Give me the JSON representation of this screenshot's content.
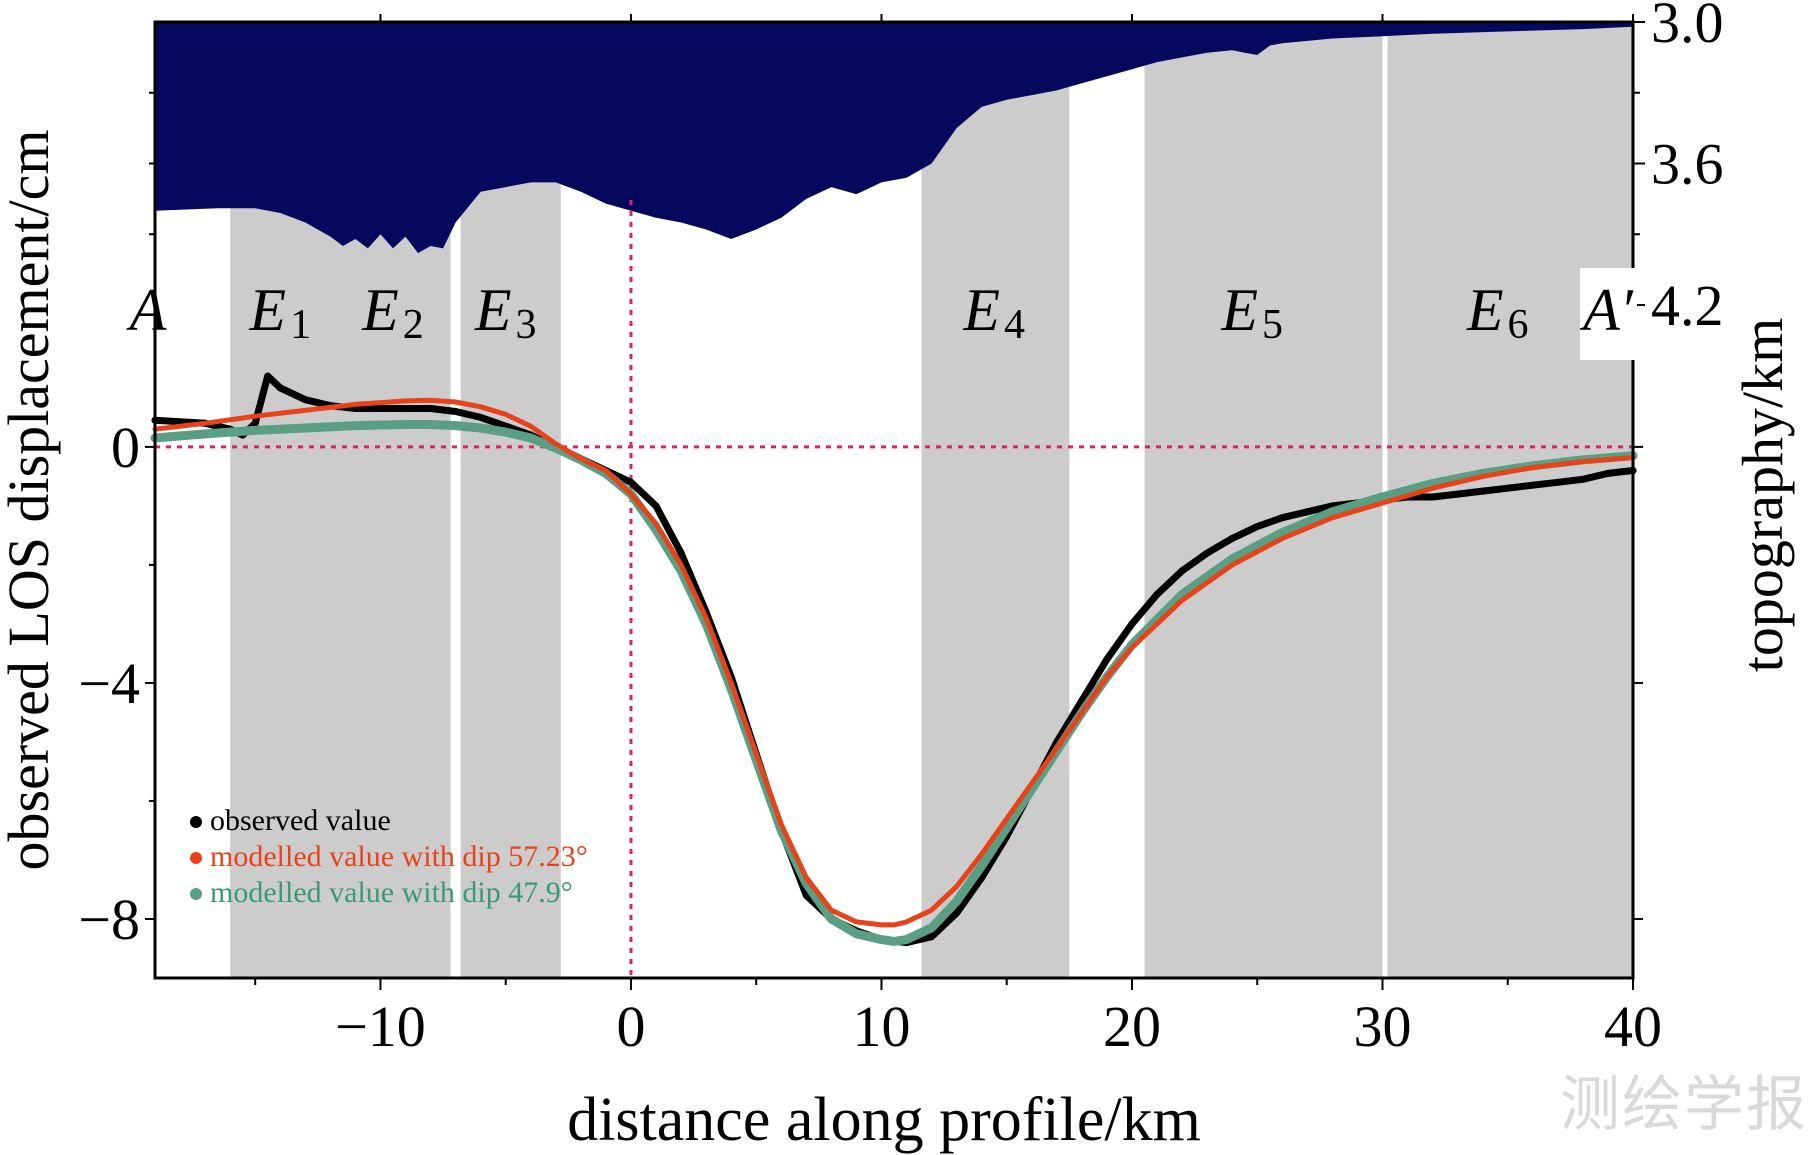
{
  "chart_data": {
    "type": "scatter",
    "xlabel": "distance along profile/km",
    "ylabel": "observed LOS displacement/cm",
    "y2label": "topography/km",
    "xlim": [
      -19,
      40
    ],
    "ylim": [
      -9,
      7.2
    ],
    "x_ticks": [
      "−10",
      "0",
      "10",
      "20",
      "30",
      "40"
    ],
    "x_tick_values": [
      -10,
      0,
      10,
      20,
      30,
      40
    ],
    "y_ticks": [
      "0",
      "−4",
      "−8"
    ],
    "y_tick_values": [
      0,
      -4,
      -8
    ],
    "y2_ticks": [
      "3.0",
      "3.6",
      "4.2"
    ],
    "y2_tick_values": [
      3.0,
      3.6,
      4.2
    ],
    "y2_axis": "inverted (depth increases downward)",
    "zones": [
      {
        "label": "E",
        "sub": "1",
        "x0": -16,
        "x1": -11.6
      },
      {
        "label": "E",
        "sub": "2",
        "x0": -11.6,
        "x1": -7.2
      },
      {
        "label": "E",
        "sub": "3",
        "x0": -6.8,
        "x1": -2.8
      },
      {
        "label": "E",
        "sub": "4",
        "x0": 11.6,
        "x1": 17.5
      },
      {
        "label": "E",
        "sub": "5",
        "x0": 20.5,
        "x1": 30.0
      },
      {
        "label": "E",
        "sub": "6",
        "x0": 30.2,
        "x1": 40
      }
    ],
    "zone_label_x": [
      -14,
      -9.5,
      -5,
      14.5,
      24.8,
      34.6
    ],
    "endpoints": {
      "left": "A",
      "right": "A′"
    },
    "reference_lines": {
      "x": 0,
      "y": 0
    },
    "legend": {
      "position": "bottom-left",
      "entries": [
        "observed value",
        "modelled value with dip 57.23°",
        "modelled value with dip 47.9°"
      ]
    },
    "topography_km": {
      "x": [
        -19,
        -16.5,
        -15,
        -14,
        -13,
        -12,
        -11.5,
        -11,
        -10.5,
        -10,
        -9.5,
        -9,
        -8.5,
        -8,
        -7.5,
        -7,
        -6,
        -5,
        -4,
        -3,
        -2,
        -1,
        0,
        1,
        2,
        3,
        4,
        5,
        6,
        7,
        8,
        9,
        10,
        11,
        12,
        13,
        14,
        15,
        16,
        17,
        18,
        19,
        20,
        21,
        22,
        23,
        24,
        24.5,
        25,
        25.5,
        26,
        28,
        30,
        32,
        35,
        38,
        40
      ],
      "y": [
        3.8,
        3.79,
        3.79,
        3.81,
        3.85,
        3.91,
        3.95,
        3.92,
        3.96,
        3.9,
        3.96,
        3.91,
        3.98,
        3.95,
        3.96,
        3.85,
        3.72,
        3.7,
        3.68,
        3.68,
        3.72,
        3.77,
        3.8,
        3.83,
        3.85,
        3.88,
        3.92,
        3.88,
        3.83,
        3.75,
        3.7,
        3.73,
        3.68,
        3.66,
        3.6,
        3.45,
        3.36,
        3.33,
        3.31,
        3.29,
        3.26,
        3.23,
        3.2,
        3.17,
        3.15,
        3.13,
        3.12,
        3.13,
        3.14,
        3.1,
        3.09,
        3.07,
        3.06,
        3.05,
        3.04,
        3.03,
        3.02
      ]
    },
    "series": [
      {
        "name": "observed value",
        "color": "#000000",
        "x": [
          -19,
          -17,
          -16,
          -15.5,
          -15,
          -14.5,
          -14,
          -13,
          -12,
          -11,
          -10,
          -9,
          -8,
          -7,
          -6,
          -5,
          -4,
          -3,
          -2,
          -1,
          0,
          1,
          2,
          3,
          4,
          5,
          6,
          7,
          8,
          9,
          10,
          11,
          12,
          13,
          14,
          15,
          16,
          17,
          18,
          19,
          20,
          21,
          22,
          23,
          24,
          25,
          26,
          27,
          28,
          29,
          30,
          31,
          32,
          33,
          34,
          35,
          36,
          37,
          38,
          39,
          40
        ],
        "y": [
          0.45,
          0.4,
          0.3,
          0.2,
          0.4,
          1.2,
          1.0,
          0.8,
          0.7,
          0.65,
          0.65,
          0.65,
          0.65,
          0.6,
          0.5,
          0.35,
          0.2,
          0.0,
          -0.2,
          -0.4,
          -0.6,
          -1.0,
          -1.8,
          -2.8,
          -3.9,
          -5.2,
          -6.5,
          -7.6,
          -8.0,
          -8.2,
          -8.35,
          -8.4,
          -8.3,
          -7.9,
          -7.3,
          -6.6,
          -5.8,
          -5.0,
          -4.3,
          -3.6,
          -3.0,
          -2.5,
          -2.1,
          -1.8,
          -1.55,
          -1.35,
          -1.2,
          -1.1,
          -1.0,
          -0.95,
          -0.9,
          -0.85,
          -0.85,
          -0.8,
          -0.75,
          -0.7,
          -0.65,
          -0.6,
          -0.55,
          -0.45,
          -0.4
        ]
      },
      {
        "name": "modelled value with dip 57.23°",
        "color": "#e8421a",
        "x": [
          -19,
          -17,
          -15,
          -13,
          -11,
          -9,
          -8,
          -7,
          -6,
          -5,
          -4,
          -3,
          -2,
          -1,
          0,
          1,
          2,
          3,
          4,
          5,
          6,
          7,
          8,
          9,
          10,
          10.5,
          11,
          12,
          13,
          14,
          15,
          16,
          17,
          18,
          19,
          20,
          22,
          24,
          26,
          28,
          30,
          32,
          34,
          36,
          38,
          40
        ],
        "y": [
          0.3,
          0.4,
          0.52,
          0.62,
          0.72,
          0.78,
          0.79,
          0.76,
          0.68,
          0.55,
          0.35,
          0.05,
          -0.2,
          -0.4,
          -0.8,
          -1.3,
          -2.0,
          -2.9,
          -4.0,
          -5.2,
          -6.4,
          -7.3,
          -7.85,
          -8.05,
          -8.1,
          -8.1,
          -8.05,
          -7.85,
          -7.45,
          -6.9,
          -6.3,
          -5.7,
          -5.1,
          -4.5,
          -3.9,
          -3.4,
          -2.6,
          -2.0,
          -1.55,
          -1.2,
          -0.95,
          -0.7,
          -0.5,
          -0.35,
          -0.25,
          -0.18
        ]
      },
      {
        "name": "modelled value with dip 47.9°",
        "color": "#5a9e84",
        "x": [
          -19,
          -17,
          -15,
          -13,
          -11,
          -9,
          -8,
          -7,
          -6,
          -5,
          -4,
          -3,
          -2,
          -1,
          0,
          1,
          2,
          3,
          4,
          5,
          6,
          7,
          8,
          9,
          10,
          10.5,
          11,
          12,
          13,
          14,
          15,
          16,
          17,
          18,
          19,
          20,
          22,
          24,
          26,
          28,
          30,
          32,
          34,
          36,
          38,
          40
        ],
        "y": [
          0.15,
          0.22,
          0.28,
          0.32,
          0.36,
          0.38,
          0.38,
          0.36,
          0.32,
          0.25,
          0.15,
          -0.02,
          -0.22,
          -0.45,
          -0.8,
          -1.4,
          -2.1,
          -3.0,
          -4.1,
          -5.3,
          -6.5,
          -7.4,
          -8.0,
          -8.25,
          -8.35,
          -8.38,
          -8.35,
          -8.15,
          -7.7,
          -7.1,
          -6.45,
          -5.8,
          -5.15,
          -4.5,
          -3.9,
          -3.35,
          -2.5,
          -1.9,
          -1.45,
          -1.1,
          -0.85,
          -0.62,
          -0.45,
          -0.32,
          -0.22,
          -0.15
        ]
      }
    ]
  },
  "watermark": "测绘学报"
}
